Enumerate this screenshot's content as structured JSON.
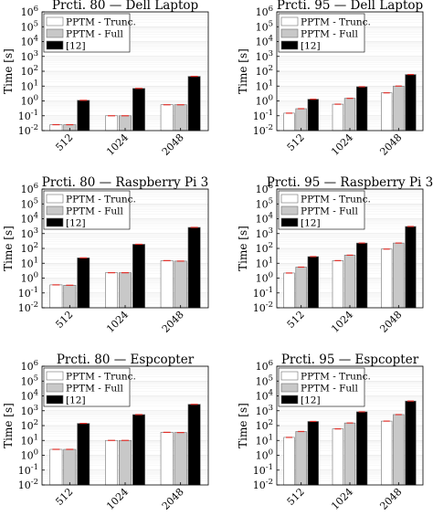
{
  "chart_data": [
    {
      "type": "bar",
      "title": "Prcti. 80 — Dell Laptop",
      "ylabel": "Time [s]",
      "yscale": "log",
      "ylim": [
        0.01,
        1000000
      ],
      "yticks": [
        "10-2",
        "10-1",
        "100",
        "101",
        "102",
        "103",
        "104",
        "105",
        "106"
      ],
      "categories": [
        "512",
        "1024",
        "2048"
      ],
      "legend_position": "top-left",
      "grid": true,
      "series": [
        {
          "name": "PPTM - Trunc.",
          "color": "#ffffff",
          "values": [
            0.025,
            0.1,
            0.55
          ]
        },
        {
          "name": "PPTM - Full",
          "color": "#c8c8c8",
          "values": [
            0.025,
            0.1,
            0.55
          ]
        },
        {
          "name": "[12]",
          "color": "#000000",
          "values": [
            1.1,
            7,
            45
          ]
        }
      ]
    },
    {
      "type": "bar",
      "title": "Prcti. 95 — Dell Laptop",
      "ylabel": "Time [s]",
      "yscale": "log",
      "ylim": [
        0.01,
        1000000
      ],
      "yticks": [
        "10-2",
        "10-1",
        "100",
        "101",
        "102",
        "103",
        "104",
        "105",
        "106"
      ],
      "categories": [
        "512",
        "1024",
        "2048"
      ],
      "legend_position": "top-left",
      "grid": true,
      "series": [
        {
          "name": "PPTM - Trunc.",
          "color": "#ffffff",
          "values": [
            0.15,
            0.6,
            3.5
          ]
        },
        {
          "name": "PPTM - Full",
          "color": "#c8c8c8",
          "values": [
            0.3,
            1.5,
            10
          ]
        },
        {
          "name": "[12]",
          "color": "#000000",
          "values": [
            1.3,
            9,
            60
          ]
        }
      ]
    },
    {
      "type": "bar",
      "title": "Prcti. 80 — Raspberry Pi 3",
      "ylabel": "Time [s]",
      "yscale": "log",
      "ylim": [
        0.01,
        1000000
      ],
      "yticks": [
        "10-2",
        "10-1",
        "100",
        "101",
        "102",
        "103",
        "104",
        "105",
        "106"
      ],
      "categories": [
        "512",
        "1024",
        "2048"
      ],
      "legend_position": "top-left",
      "grid": true,
      "series": [
        {
          "name": "PPTM - Trunc.",
          "color": "#ffffff",
          "values": [
            0.35,
            2.3,
            15
          ]
        },
        {
          "name": "PPTM - Full",
          "color": "#c8c8c8",
          "values": [
            0.33,
            2.3,
            14
          ]
        },
        {
          "name": "[12]",
          "color": "#000000",
          "values": [
            23,
            190,
            2600
          ]
        }
      ]
    },
    {
      "type": "bar",
      "title": "Prcti. 95 — Raspberry Pi 3",
      "ylabel": "Time [s]",
      "yscale": "log",
      "ylim": [
        0.01,
        1000000
      ],
      "yticks": [
        "10-2",
        "10-1",
        "100",
        "101",
        "102",
        "103",
        "104",
        "105",
        "106"
      ],
      "categories": [
        "512",
        "1024",
        "2048"
      ],
      "legend_position": "top-left",
      "grid": true,
      "series": [
        {
          "name": "PPTM - Trunc.",
          "color": "#ffffff",
          "values": [
            2.2,
            15,
            90
          ]
        },
        {
          "name": "PPTM - Full",
          "color": "#c8c8c8",
          "values": [
            5.5,
            35,
            230
          ]
        },
        {
          "name": "[12]",
          "color": "#000000",
          "values": [
            28,
            230,
            3000
          ]
        }
      ]
    },
    {
      "type": "bar",
      "title": "Prcti. 80 — Espcopter",
      "ylabel": "Time [s]",
      "yscale": "log",
      "ylim": [
        0.01,
        1000000
      ],
      "yticks": [
        "10-2",
        "10-1",
        "100",
        "101",
        "102",
        "103",
        "104",
        "105",
        "106"
      ],
      "categories": [
        "512",
        "1024",
        "2048"
      ],
      "legend_position": "top-left",
      "grid": true,
      "series": [
        {
          "name": "PPTM - Trunc.",
          "color": "#ffffff",
          "values": [
            2.5,
            10,
            35
          ]
        },
        {
          "name": "PPTM - Full",
          "color": "#c8c8c8",
          "values": [
            2.5,
            10,
            34
          ]
        },
        {
          "name": "[12]",
          "color": "#000000",
          "values": [
            140,
            550,
            2700
          ]
        }
      ]
    },
    {
      "type": "bar",
      "title": "Prcti. 95 — Espcopter",
      "ylabel": "Time [s]",
      "yscale": "log",
      "ylim": [
        0.01,
        1000000
      ],
      "yticks": [
        "10-2",
        "10-1",
        "100",
        "101",
        "102",
        "103",
        "104",
        "105",
        "106"
      ],
      "categories": [
        "512",
        "1024",
        "2048"
      ],
      "legend_position": "top-left",
      "grid": true,
      "series": [
        {
          "name": "PPTM - Trunc.",
          "color": "#ffffff",
          "values": [
            16,
            60,
            200
          ]
        },
        {
          "name": "PPTM - Full",
          "color": "#c8c8c8",
          "values": [
            40,
            150,
            550
          ]
        },
        {
          "name": "[12]",
          "color": "#000000",
          "values": [
            190,
            850,
            4500
          ]
        }
      ]
    }
  ]
}
